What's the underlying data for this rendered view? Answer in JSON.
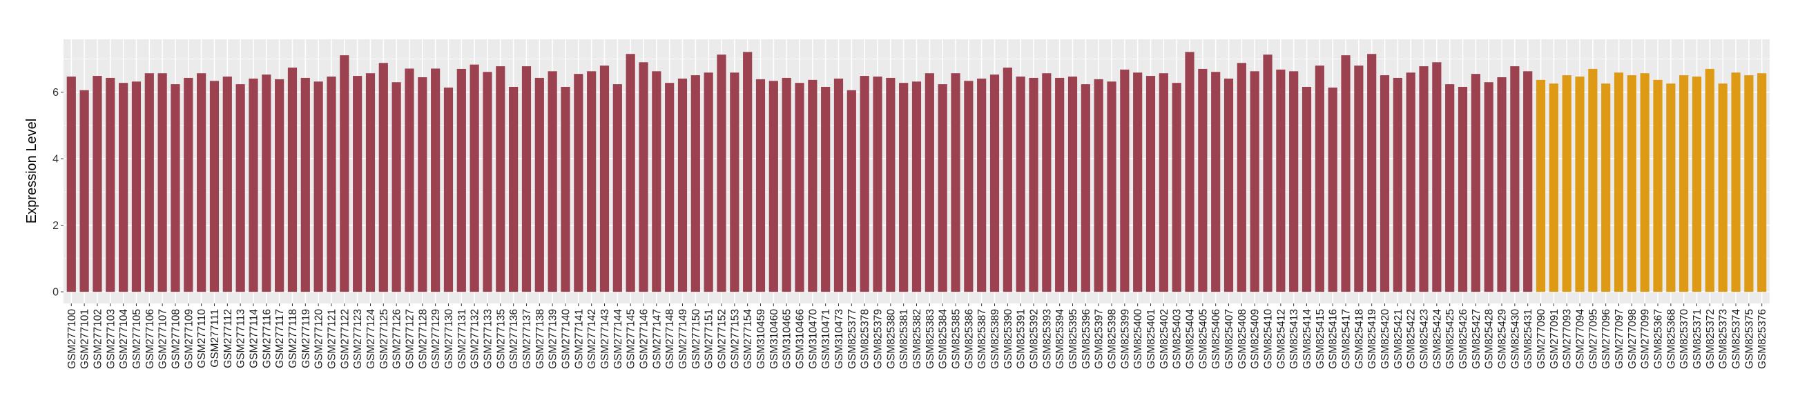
{
  "chart_data": {
    "type": "bar",
    "title": "",
    "xlabel": "",
    "ylabel": "Expression Level",
    "ylim": [
      -0.35,
      7.59
    ],
    "yticks": [
      0,
      2,
      4,
      6
    ],
    "grid": true,
    "background": "#EBEBEB",
    "legend": "none",
    "series": [
      {
        "color": "#9B4150",
        "categories": [
          "GSM277100",
          "GSM277101",
          "GSM277102",
          "GSM277103",
          "GSM277104",
          "GSM277105",
          "GSM277106",
          "GSM277107",
          "GSM277108",
          "GSM277109",
          "GSM277110",
          "GSM277111",
          "GSM277112",
          "GSM277113",
          "GSM277114",
          "GSM277116",
          "GSM277117",
          "GSM277118",
          "GSM277119",
          "GSM277120",
          "GSM277121",
          "GSM277122",
          "GSM277123",
          "GSM277124",
          "GSM277125",
          "GSM277126",
          "GSM277127",
          "GSM277128",
          "GSM277129",
          "GSM277130",
          "GSM277131",
          "GSM277132",
          "GSM277133",
          "GSM277135",
          "GSM277136",
          "GSM277137",
          "GSM277138",
          "GSM277139",
          "GSM277140",
          "GSM277141",
          "GSM277142",
          "GSM277143",
          "GSM277144",
          "GSM277145",
          "GSM277146",
          "GSM277147",
          "GSM277148",
          "GSM277149",
          "GSM277150",
          "GSM277151",
          "GSM277152",
          "GSM277153",
          "GSM277154",
          "GSM310459",
          "GSM310460",
          "GSM310465",
          "GSM310466",
          "GSM310470",
          "GSM310471",
          "GSM310473",
          "GSM825377",
          "GSM825378",
          "GSM825379",
          "GSM825380",
          "GSM825381",
          "GSM825382",
          "GSM825383",
          "GSM825384",
          "GSM825385",
          "GSM825386",
          "GSM825387",
          "GSM825389",
          "GSM825390",
          "GSM825391",
          "GSM825392",
          "GSM825393",
          "GSM825394",
          "GSM825395",
          "GSM825396",
          "GSM825397",
          "GSM825398",
          "GSM825399",
          "GSM825400",
          "GSM825401",
          "GSM825402",
          "GSM825403",
          "GSM825404",
          "GSM825405",
          "GSM825406",
          "GSM825407",
          "GSM825408",
          "GSM825409",
          "GSM825410",
          "GSM825412",
          "GSM825413",
          "GSM825414",
          "GSM825415",
          "GSM825416",
          "GSM825417",
          "GSM825418",
          "GSM825419",
          "GSM825420",
          "GSM825421",
          "GSM825422",
          "GSM825423",
          "GSM825424",
          "GSM825425",
          "GSM825426",
          "GSM825427",
          "GSM825428",
          "GSM825429",
          "GSM825430",
          "GSM825431"
        ],
        "values": [
          6.47,
          6.06,
          6.49,
          6.43,
          6.28,
          6.32,
          6.57,
          6.57,
          6.24,
          6.43,
          6.57,
          6.34,
          6.47,
          6.24,
          6.41,
          6.53,
          6.39,
          6.74,
          6.43,
          6.32,
          6.47,
          7.11,
          6.49,
          6.57,
          6.88,
          6.3,
          6.71,
          6.45,
          6.71,
          6.14,
          6.7,
          6.83,
          6.61,
          6.78,
          6.16,
          6.78,
          6.43,
          6.63,
          6.16,
          6.55,
          6.63,
          6.8,
          6.24,
          7.15,
          6.9,
          6.63,
          6.28,
          6.41,
          6.51,
          6.59,
          7.13,
          6.59,
          7.21,
          6.39,
          6.34,
          6.43,
          6.28,
          6.37,
          6.16,
          6.41,
          6.06,
          6.49,
          6.47,
          6.43,
          6.28,
          6.32,
          6.57,
          6.24,
          6.57,
          6.34,
          6.41,
          6.53,
          6.74,
          6.47,
          6.43,
          6.57,
          6.43,
          6.47,
          6.24,
          6.39,
          6.32,
          6.68,
          6.59,
          6.49,
          6.57,
          6.28,
          7.21,
          6.7,
          6.61,
          6.41,
          6.88,
          6.63,
          7.13,
          6.68,
          6.63,
          6.16,
          6.8,
          6.14,
          7.11,
          6.8,
          7.15,
          6.51,
          6.43,
          6.59,
          6.78,
          6.9,
          6.24,
          6.16,
          6.55,
          6.3,
          6.45,
          6.78,
          6.63
        ]
      },
      {
        "color": "#DE9A14",
        "categories": [
          "GSM277090",
          "GSM277091",
          "GSM277093",
          "GSM277094",
          "GSM277095",
          "GSM277096",
          "GSM277097",
          "GSM277098",
          "GSM277099",
          "GSM825367",
          "GSM825368",
          "GSM825370",
          "GSM825371",
          "GSM825372",
          "GSM825373",
          "GSM825374",
          "GSM825375",
          "GSM825376"
        ],
        "values": [
          6.37,
          6.26,
          6.51,
          6.47,
          6.7,
          6.26,
          6.59,
          6.51,
          6.57,
          6.37,
          6.26,
          6.51,
          6.47,
          6.7,
          6.26,
          6.59,
          6.51,
          6.57
        ]
      }
    ]
  }
}
